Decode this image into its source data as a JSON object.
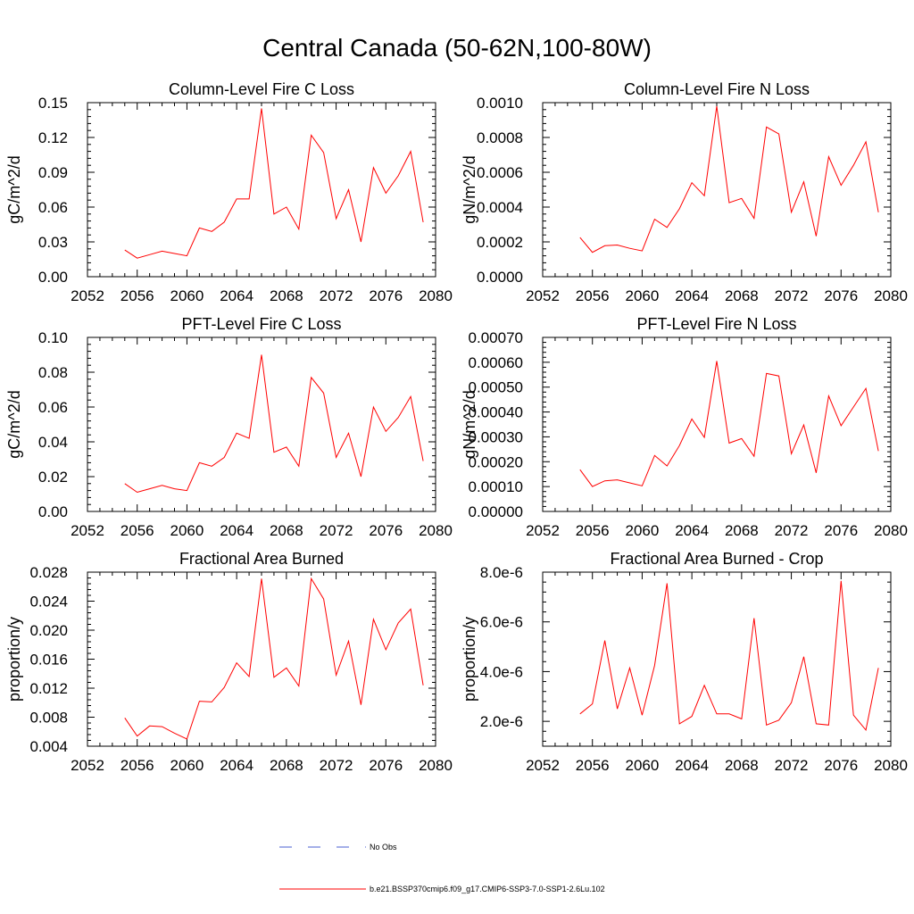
{
  "title": "Central Canada (50-62N,100-80W)",
  "legend": {
    "entries": [
      {
        "label": "No Obs",
        "color": "#4a5fd0",
        "style": "dashed"
      },
      {
        "label": "b.e21.BSSP370cmip6.f09_g17.CMIP6-SSP3-7.0-SSP1-2.6Lu.102",
        "color": "#ff0000",
        "style": "solid"
      }
    ]
  },
  "chart_data": [
    {
      "type": "line",
      "title": "Column-Level Fire C Loss",
      "ylabel": "gC/m^2/d",
      "xlim": [
        2052,
        2080
      ],
      "xticks": [
        "2052",
        "2056",
        "2060",
        "2064",
        "2068",
        "2072",
        "2076",
        "2080"
      ],
      "ylim": [
        0,
        0.15
      ],
      "yticks": [
        "0.00",
        "0.03",
        "0.06",
        "0.09",
        "0.12",
        "0.15"
      ],
      "x": [
        2055,
        2056,
        2057,
        2058,
        2059,
        2060,
        2061,
        2062,
        2063,
        2064,
        2065,
        2066,
        2067,
        2068,
        2069,
        2070,
        2071,
        2072,
        2073,
        2074,
        2075,
        2076,
        2077,
        2078,
        2079
      ],
      "series": [
        {
          "name": "b.e21.BSSP370cmip6.f09_g17.CMIP6-SSP3-7.0-SSP1-2.6Lu.102",
          "color": "#ff0000",
          "values": [
            0.023,
            0.016,
            0.019,
            0.022,
            0.02,
            0.018,
            0.042,
            0.039,
            0.047,
            0.067,
            0.067,
            0.145,
            0.054,
            0.06,
            0.041,
            0.122,
            0.107,
            0.05,
            0.075,
            0.03,
            0.094,
            0.072,
            0.087,
            0.108,
            0.047
          ]
        }
      ]
    },
    {
      "type": "line",
      "title": "Column-Level Fire N Loss",
      "ylabel": "gN/m^2/d",
      "xlim": [
        2052,
        2080
      ],
      "xticks": [
        "2052",
        "2056",
        "2060",
        "2064",
        "2068",
        "2072",
        "2076",
        "2080"
      ],
      "ylim": [
        0,
        0.001
      ],
      "yticks": [
        "0.0000",
        "0.0002",
        "0.0004",
        "0.0006",
        "0.0008",
        "0.0010"
      ],
      "x": [
        2055,
        2056,
        2057,
        2058,
        2059,
        2060,
        2061,
        2062,
        2063,
        2064,
        2065,
        2066,
        2067,
        2068,
        2069,
        2070,
        2071,
        2072,
        2073,
        2074,
        2075,
        2076,
        2077,
        2078,
        2079
      ],
      "series": [
        {
          "name": "b.e21.BSSP370cmip6.f09_g17.CMIP6-SSP3-7.0-SSP1-2.6Lu.102",
          "color": "#ff0000",
          "values": [
            0.000225,
            0.00014,
            0.000178,
            0.000182,
            0.000163,
            0.000148,
            0.00033,
            0.000283,
            0.00039,
            0.00054,
            0.000465,
            0.00098,
            0.000425,
            0.00045,
            0.000335,
            0.00086,
            0.00082,
            0.00037,
            0.000545,
            0.000233,
            0.00069,
            0.000525,
            0.00064,
            0.000775,
            0.00037
          ]
        }
      ]
    },
    {
      "type": "line",
      "title": "PFT-Level Fire C Loss",
      "ylabel": "gC/m^2/d",
      "xlim": [
        2052,
        2080
      ],
      "xticks": [
        "2052",
        "2056",
        "2060",
        "2064",
        "2068",
        "2072",
        "2076",
        "2080"
      ],
      "ylim": [
        0,
        0.1
      ],
      "yticks": [
        "0.00",
        "0.02",
        "0.04",
        "0.06",
        "0.08",
        "0.10"
      ],
      "x": [
        2055,
        2056,
        2057,
        2058,
        2059,
        2060,
        2061,
        2062,
        2063,
        2064,
        2065,
        2066,
        2067,
        2068,
        2069,
        2070,
        2071,
        2072,
        2073,
        2074,
        2075,
        2076,
        2077,
        2078,
        2079
      ],
      "series": [
        {
          "name": "b.e21.BSSP370cmip6.f09_g17.CMIP6-SSP3-7.0-SSP1-2.6Lu.102",
          "color": "#ff0000",
          "values": [
            0.016,
            0.011,
            0.013,
            0.015,
            0.013,
            0.012,
            0.028,
            0.026,
            0.031,
            0.045,
            0.042,
            0.09,
            0.034,
            0.037,
            0.026,
            0.077,
            0.068,
            0.031,
            0.045,
            0.02,
            0.06,
            0.046,
            0.054,
            0.066,
            0.029
          ]
        }
      ]
    },
    {
      "type": "line",
      "title": "PFT-Level Fire N Loss",
      "ylabel": "gN/m^2/d",
      "xlim": [
        2052,
        2080
      ],
      "xticks": [
        "2052",
        "2056",
        "2060",
        "2064",
        "2068",
        "2072",
        "2076",
        "2080"
      ],
      "ylim": [
        0,
        0.0007
      ],
      "yticks": [
        "0.00000",
        "0.00010",
        "0.00020",
        "0.00030",
        "0.00040",
        "0.00050",
        "0.00060",
        "0.00070"
      ],
      "x": [
        2055,
        2056,
        2057,
        2058,
        2059,
        2060,
        2061,
        2062,
        2063,
        2064,
        2065,
        2066,
        2067,
        2068,
        2069,
        2070,
        2071,
        2072,
        2073,
        2074,
        2075,
        2076,
        2077,
        2078,
        2079
      ],
      "series": [
        {
          "name": "b.e21.BSSP370cmip6.f09_g17.CMIP6-SSP3-7.0-SSP1-2.6Lu.102",
          "color": "#ff0000",
          "values": [
            0.000168,
            0.0001,
            0.000123,
            0.000127,
            0.000115,
            0.000103,
            0.000225,
            0.000183,
            0.000265,
            0.000372,
            0.000298,
            0.000605,
            0.000275,
            0.000293,
            0.000222,
            0.000555,
            0.000545,
            0.000232,
            0.000348,
            0.000155,
            0.000465,
            0.000345,
            0.00042,
            0.000495,
            0.000243
          ]
        }
      ]
    },
    {
      "type": "line",
      "title": "Fractional Area Burned",
      "ylabel": "proportion/y",
      "xlim": [
        2052,
        2080
      ],
      "xticks": [
        "2052",
        "2056",
        "2060",
        "2064",
        "2068",
        "2072",
        "2076",
        "2080"
      ],
      "ylim": [
        0.004,
        0.028
      ],
      "yticks": [
        "0.004",
        "0.008",
        "0.012",
        "0.016",
        "0.020",
        "0.024",
        "0.028"
      ],
      "x": [
        2055,
        2056,
        2057,
        2058,
        2059,
        2060,
        2061,
        2062,
        2063,
        2064,
        2065,
        2066,
        2067,
        2068,
        2069,
        2070,
        2071,
        2072,
        2073,
        2074,
        2075,
        2076,
        2077,
        2078,
        2079
      ],
      "series": [
        {
          "name": "b.e21.BSSP370cmip6.f09_g17.CMIP6-SSP3-7.0-SSP1-2.6Lu.102",
          "color": "#ff0000",
          "values": [
            0.0079,
            0.0054,
            0.0068,
            0.0067,
            0.0058,
            0.005,
            0.0102,
            0.0101,
            0.0121,
            0.0155,
            0.0136,
            0.0271,
            0.0135,
            0.0148,
            0.0123,
            0.0271,
            0.0243,
            0.0138,
            0.0185,
            0.0097,
            0.0215,
            0.0173,
            0.021,
            0.0229,
            0.0124
          ]
        }
      ]
    },
    {
      "type": "line",
      "title": "Fractional Area Burned - Crop",
      "ylabel": "proportion/y",
      "xlim": [
        2052,
        2080
      ],
      "xticks": [
        "2052",
        "2056",
        "2060",
        "2064",
        "2068",
        "2072",
        "2076",
        "2080"
      ],
      "ylim": [
        1e-06,
        8e-06
      ],
      "yticks": [
        "2.0e-6",
        "4.0e-6",
        "6.0e-6",
        "8.0e-6"
      ],
      "ytick_values": [
        2e-06,
        4e-06,
        6e-06,
        8e-06
      ],
      "x": [
        2055,
        2056,
        2057,
        2058,
        2059,
        2060,
        2061,
        2062,
        2063,
        2064,
        2065,
        2066,
        2067,
        2068,
        2069,
        2070,
        2071,
        2072,
        2073,
        2074,
        2075,
        2076,
        2077,
        2078,
        2079
      ],
      "series": [
        {
          "name": "b.e21.BSSP370cmip6.f09_g17.CMIP6-SSP3-7.0-SSP1-2.6Lu.102",
          "color": "#ff0000",
          "values": [
            2.3e-06,
            2.7e-06,
            5.25e-06,
            2.5e-06,
            4.15e-06,
            2.25e-06,
            4.25e-06,
            7.55e-06,
            1.9e-06,
            2.2e-06,
            3.45e-06,
            2.3e-06,
            2.3e-06,
            2.1e-06,
            6.15e-06,
            1.85e-06,
            2.05e-06,
            2.75e-06,
            4.6e-06,
            1.9e-06,
            1.85e-06,
            7.65e-06,
            2.25e-06,
            1.65e-06,
            4.15e-06
          ]
        }
      ]
    }
  ]
}
